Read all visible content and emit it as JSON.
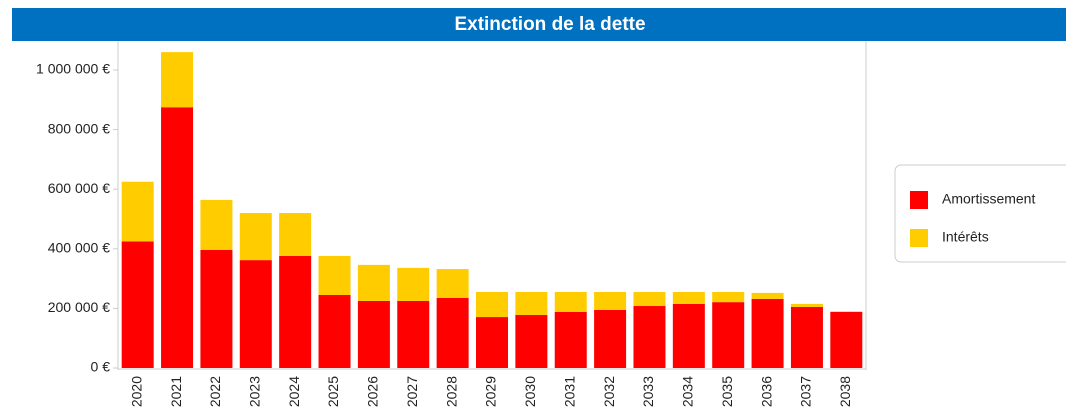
{
  "chart_data": {
    "type": "stacked_bar",
    "title": "Extinction de la dette",
    "categories": [
      "2020",
      "2021",
      "2022",
      "2023",
      "2024",
      "2025",
      "2026",
      "2027",
      "2028",
      "2029",
      "2030",
      "2031",
      "2032",
      "2033",
      "2034",
      "2035",
      "2036",
      "2037",
      "2038"
    ],
    "series": [
      {
        "name": "Amortissement",
        "color": "#ff0000",
        "values": [
          425000,
          875000,
          396000,
          362000,
          376000,
          245000,
          225000,
          225000,
          235000,
          171000,
          178000,
          188000,
          195000,
          208000,
          215000,
          221000,
          232000,
          205000,
          188000
        ]
      },
      {
        "name": "Intérêts",
        "color": "#ffcc00",
        "values": [
          200000,
          185000,
          168000,
          158000,
          144000,
          131000,
          121000,
          111000,
          97000,
          84000,
          77000,
          67000,
          60000,
          47000,
          40000,
          34000,
          20000,
          10000,
          2000
        ]
      }
    ],
    "ylim": [
      0,
      1100000
    ],
    "yticks": [
      {
        "value": 0,
        "label": "0 €"
      },
      {
        "value": 200000,
        "label": "200 000 €"
      },
      {
        "value": 400000,
        "label": "400 000 €"
      },
      {
        "value": 600000,
        "label": "600 000 €"
      },
      {
        "value": 800000,
        "label": "800 000 €"
      },
      {
        "value": 1000000,
        "label": "1 000 000 €"
      }
    ],
    "legend": "right"
  }
}
